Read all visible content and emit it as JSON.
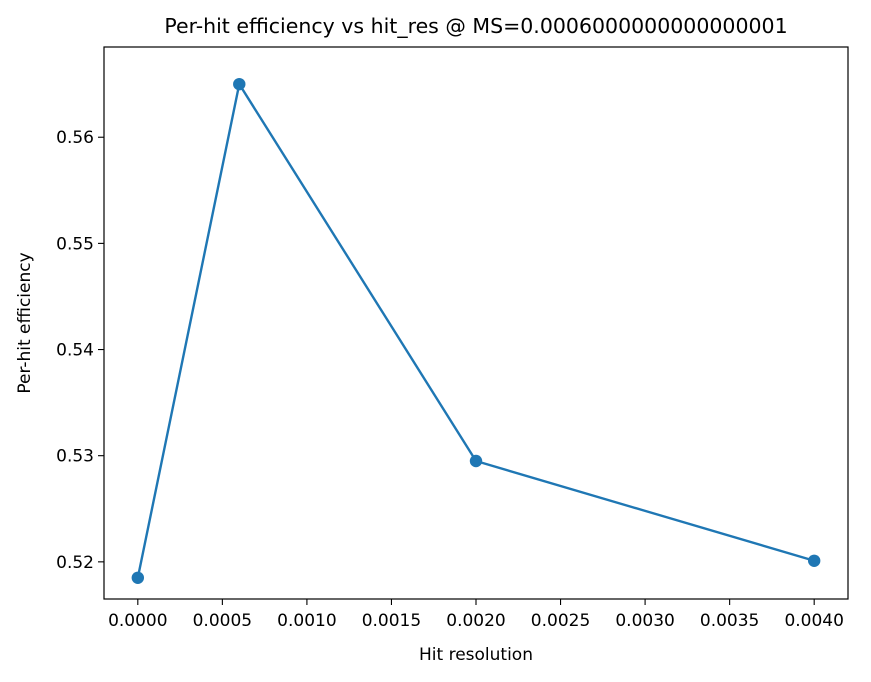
{
  "chart_data": {
    "type": "line",
    "title": "Per-hit efficiency vs hit_res @ MS=0.0006000000000000001",
    "xlabel": "Hit resolution",
    "ylabel": "Per-hit efficiency",
    "x": [
      0.0,
      0.0006,
      0.002,
      0.004
    ],
    "series": [
      {
        "values": [
          0.5185,
          0.565,
          0.5295,
          0.5201
        ],
        "color": "#1f77b4",
        "marker": "circle"
      }
    ],
    "xlim": [
      -0.0002,
      0.0042
    ],
    "ylim": [
      0.5165,
      0.5685
    ],
    "xticks": [
      0.0,
      0.0005,
      0.001,
      0.0015,
      0.002,
      0.0025,
      0.003,
      0.0035,
      0.004
    ],
    "xtick_labels": [
      "0.0000",
      "0.0005",
      "0.0010",
      "0.0015",
      "0.0020",
      "0.0025",
      "0.0030",
      "0.0035",
      "0.0040"
    ],
    "yticks": [
      0.52,
      0.53,
      0.54,
      0.55,
      0.56
    ],
    "ytick_labels": [
      "0.52",
      "0.53",
      "0.54",
      "0.55",
      "0.56"
    ],
    "grid": false,
    "legend": "none"
  }
}
